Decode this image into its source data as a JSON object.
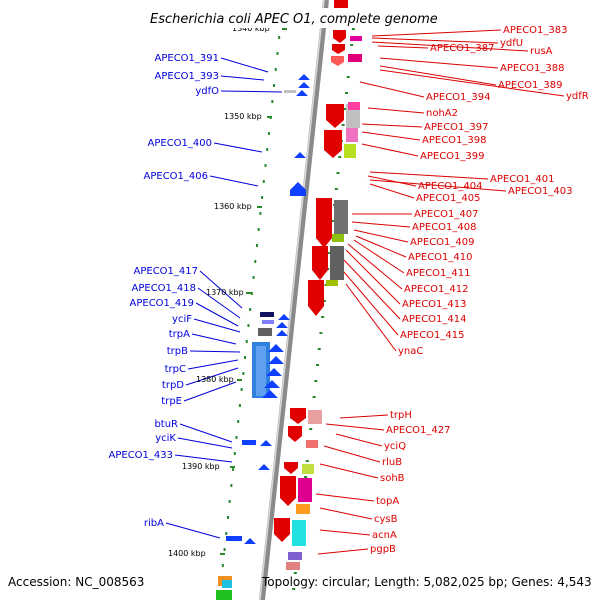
{
  "title": "Escherichia coli APEC O1, complete genome",
  "footer": {
    "accession": "Accession: NC_008563",
    "topology": "Topology: circular; Length: 5,082,025 bp; Genes: 4,543"
  },
  "colors": {
    "forward": "#0000dd",
    "reverse": "#dd0000",
    "tick": "#2a8a2a",
    "backbone": "#888888"
  },
  "kbp_ticks": [
    "1340 kbp",
    "1350 kbp",
    "1360 kbp",
    "1370 kbp",
    "1380 kbp",
    "1390 kbp",
    "1400 kbp"
  ],
  "left_genes": [
    "APECO1_391",
    "APECO1_393",
    "ydfO",
    "APECO1_400",
    "APECO1_406",
    "APECO1_417",
    "APECO1_418",
    "APECO1_419",
    "yciF",
    "trpA",
    "trpB",
    "trpC",
    "trpD",
    "trpE",
    "btuR",
    "yciK",
    "APECO1_433",
    "ribA"
  ],
  "right_genes": [
    "APECO1_383",
    "ydfU",
    "rusA",
    "APECO1_387",
    "APECO1_388",
    "APECO1_389",
    "ydfR",
    "APECO1_394",
    "nohA2",
    "APECO1_397",
    "APECO1_398",
    "APECO1_399",
    "APECO1_401",
    "APECO1_404",
    "APECO1_403",
    "APECO1_405",
    "APECO1_407",
    "APECO1_408",
    "APECO1_409",
    "APECO1_410",
    "APECO1_411",
    "APECO1_412",
    "APECO1_413",
    "APECO1_414",
    "APECO1_415",
    "ynaC",
    "trpH",
    "APECO1_427",
    "yciQ",
    "rluB",
    "sohB",
    "topA",
    "cysB",
    "acnA",
    "pgpB"
  ]
}
